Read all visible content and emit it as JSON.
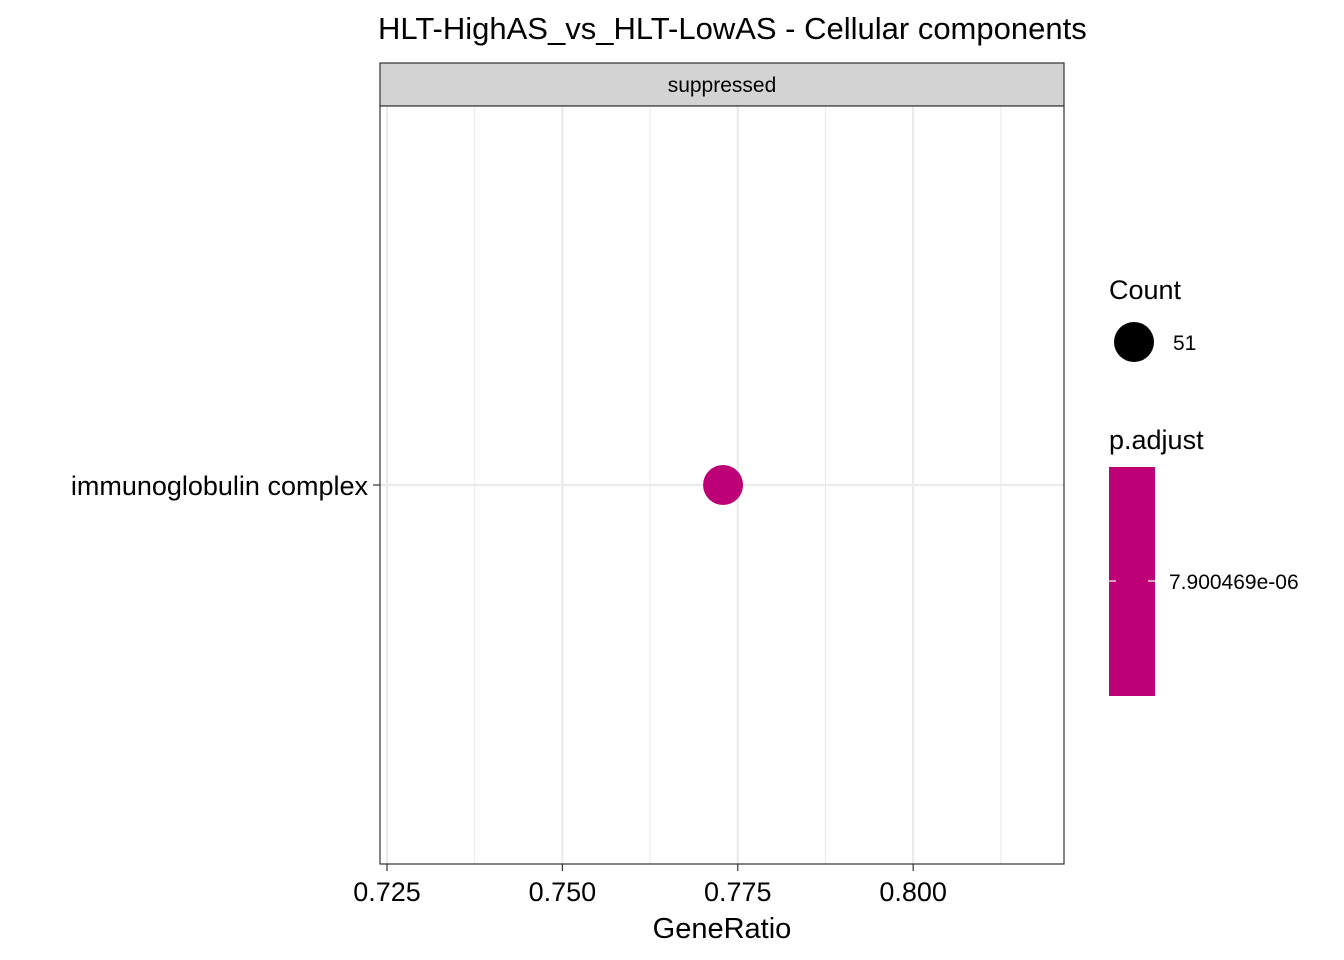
{
  "chart_data": {
    "type": "scatter",
    "title": "HLT-HighAS_vs_HLT-LowAS - Cellular components",
    "facet_label": "suppressed",
    "xlabel": "GeneRatio",
    "ylabel": "",
    "xlim": [
      0.724,
      0.8215
    ],
    "x_ticks": [
      0.725,
      0.75,
      0.775,
      0.8
    ],
    "x_tick_labels": [
      "0.725",
      "0.750",
      "0.775",
      "0.800"
    ],
    "x_minor_ticks": [
      0.7375,
      0.7625,
      0.7875,
      0.8125
    ],
    "categories": [
      "immunoglobulin complex"
    ],
    "points": [
      {
        "category": "immunoglobulin complex",
        "x": 0.7729,
        "count": 51,
        "p_adjust": 7.900469e-06,
        "color": "#BE0077"
      }
    ],
    "grid": true,
    "legend": {
      "placement": "right",
      "size": {
        "title": "Count",
        "value_label": "51",
        "value": 51
      },
      "color": {
        "title": "p.adjust",
        "value_label": "7.900469e-06",
        "value": 7.900469e-06,
        "color": "#BE0077"
      }
    },
    "colors": {
      "panel_grid": "#EBEBEB",
      "strip_fill": "#D3D3D3",
      "point": "#BE0077"
    }
  }
}
